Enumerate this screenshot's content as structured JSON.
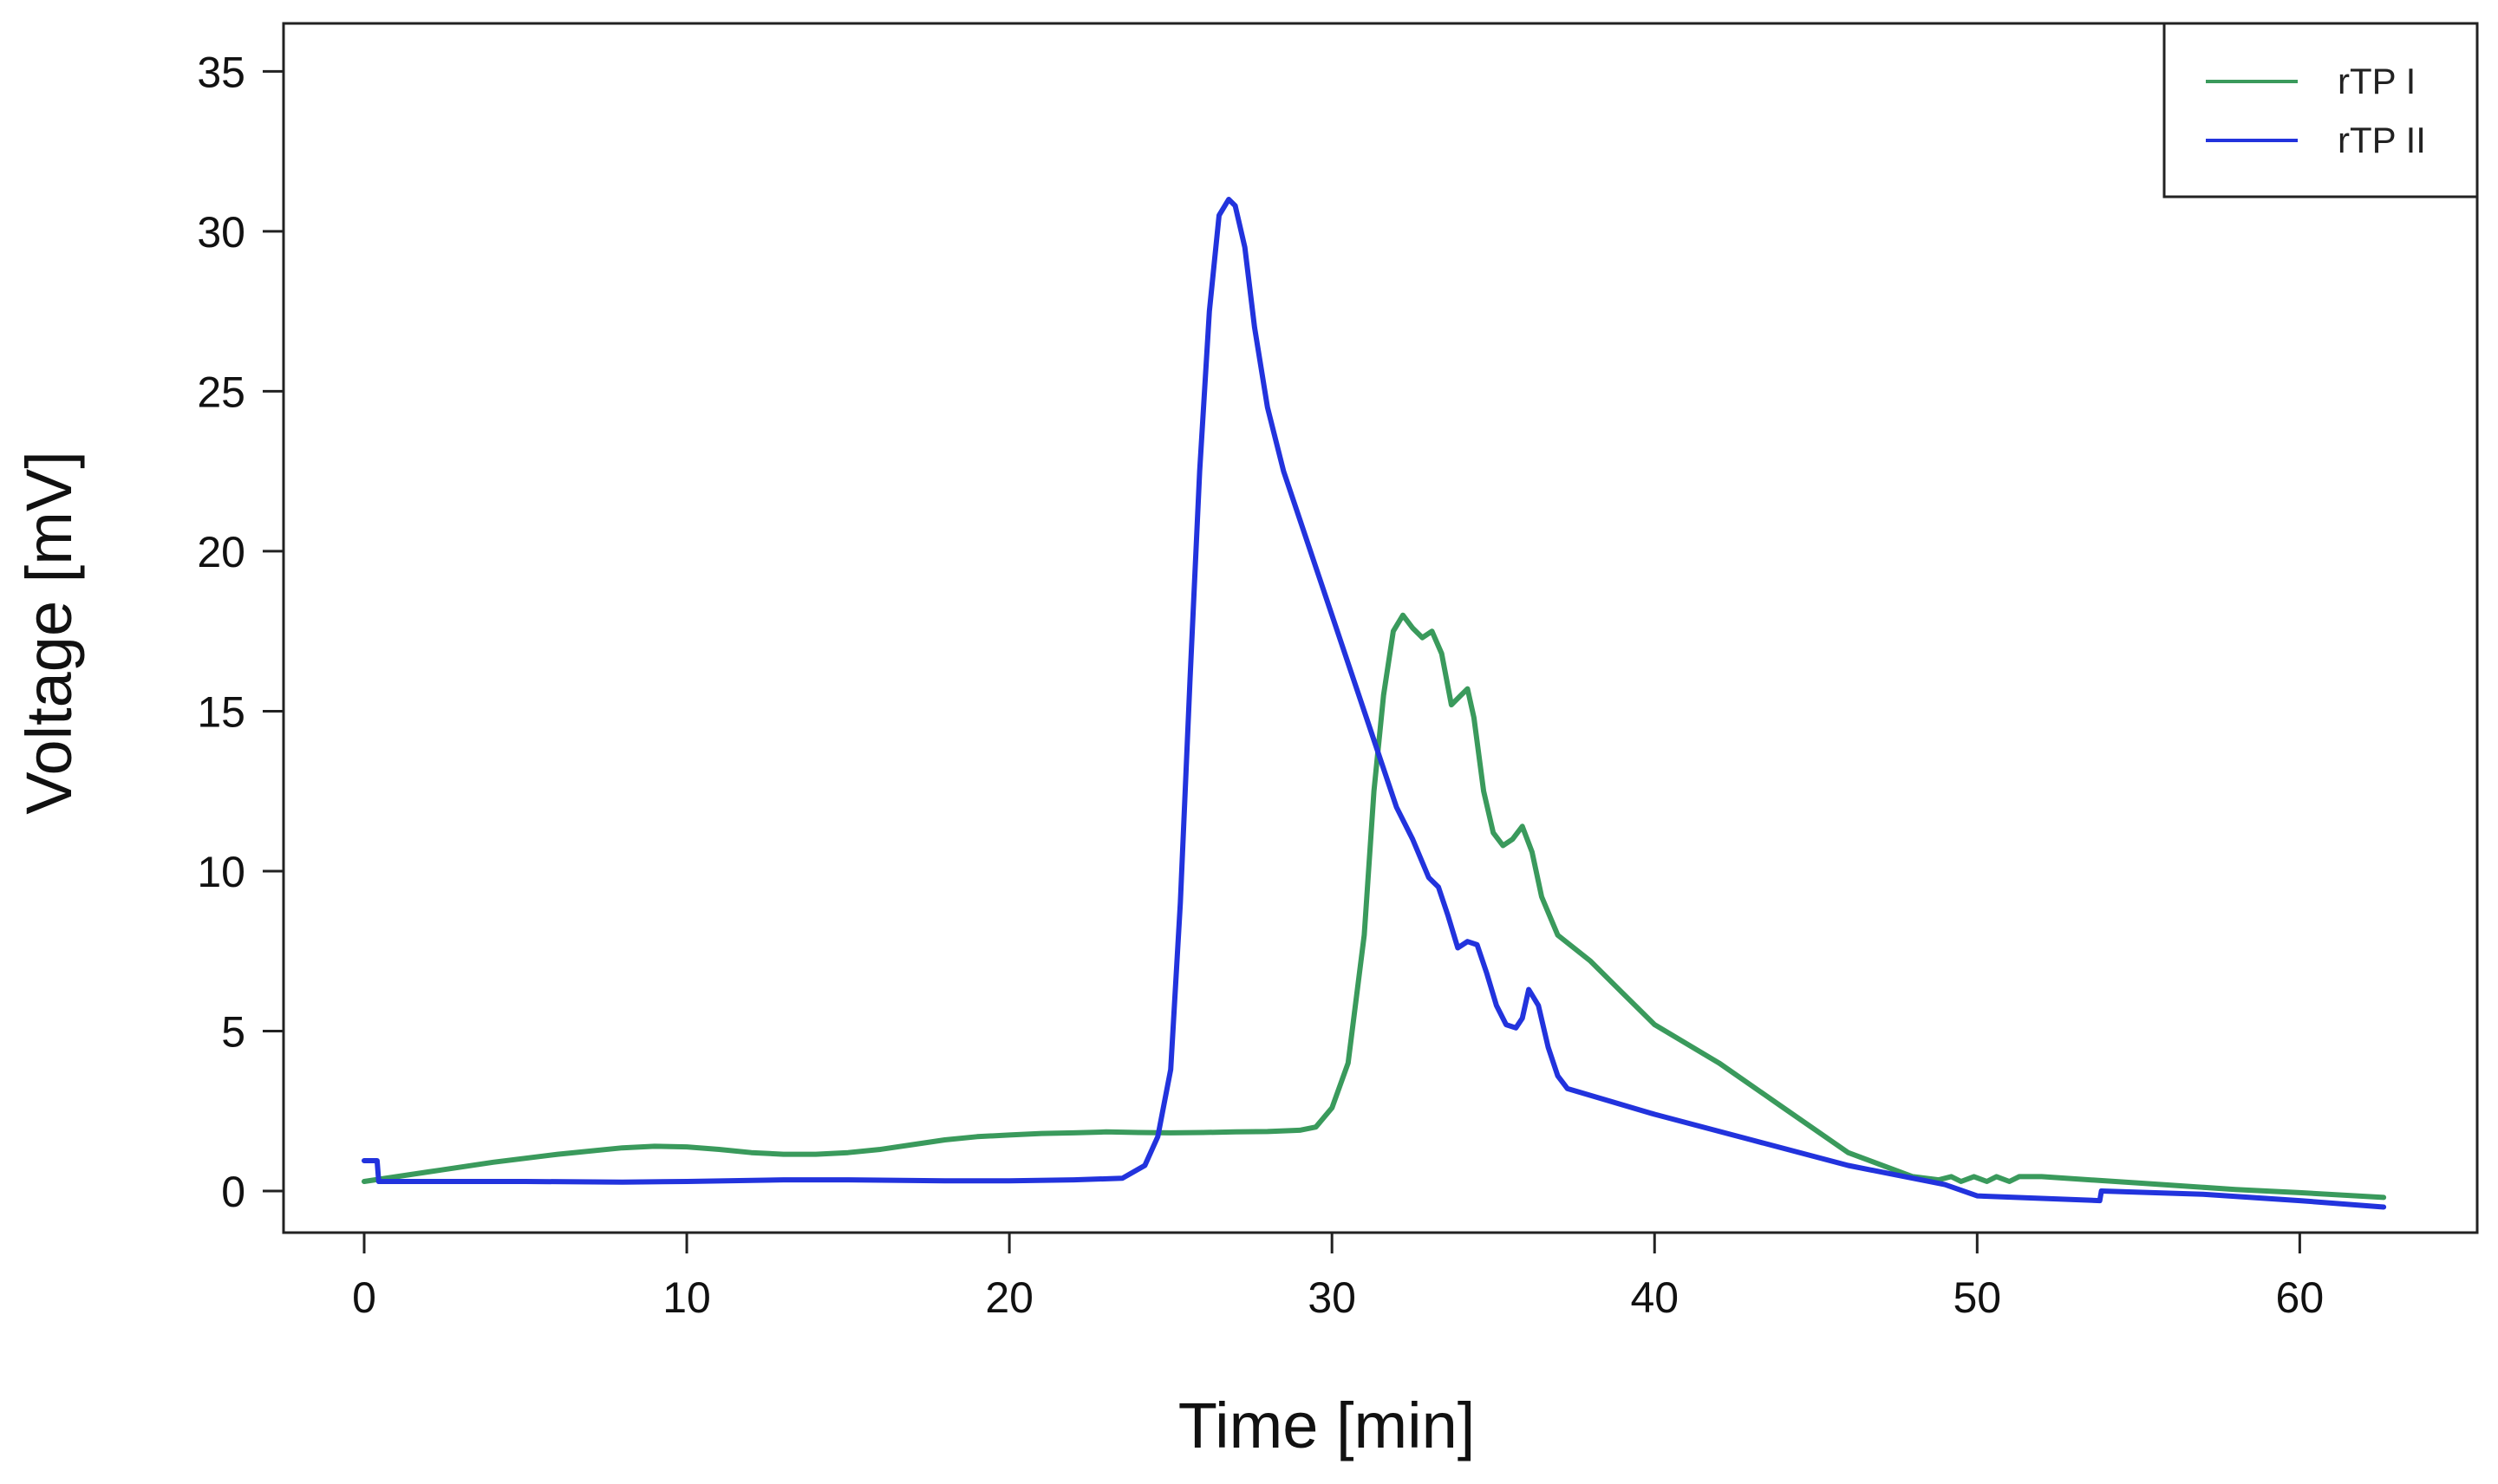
{
  "chart_data": {
    "type": "line",
    "title": "",
    "xlabel": "Time [min]",
    "ylabel": "Voltage [mV]",
    "xlim": [
      -2.5,
      65.5
    ],
    "ylim": [
      -1.3,
      36.5
    ],
    "xticks": [
      "0",
      "10",
      "20",
      "30",
      "40",
      "50",
      "60"
    ],
    "yticks": [
      "0",
      "5",
      "10",
      "15",
      "20",
      "25",
      "30",
      "35"
    ],
    "grid": false,
    "legend_position": "top-right",
    "series": [
      {
        "name": "rTP I",
        "color": "#3a9a5c",
        "x": [
          0,
          2,
          4,
          6,
          8,
          9,
          10,
          11,
          12,
          13,
          14,
          15,
          16,
          17,
          18,
          19,
          20,
          21,
          22,
          23,
          24,
          25,
          26,
          27,
          28,
          29,
          29.5,
          30,
          30.5,
          31,
          31.3,
          31.6,
          31.9,
          32.2,
          32.5,
          32.8,
          33.1,
          33.4,
          33.7,
          34.0,
          34.2,
          34.4,
          34.7,
          35.0,
          35.3,
          35.6,
          35.9,
          36.2,
          36.5,
          37.0,
          38,
          39,
          40,
          42,
          44,
          46,
          48,
          48.8,
          49.2,
          49.5,
          49.9,
          50.3,
          50.6,
          51.0,
          51.3,
          52,
          55,
          58,
          60,
          62.6
        ],
        "y": [
          0.3,
          0.6,
          0.9,
          1.15,
          1.35,
          1.4,
          1.38,
          1.3,
          1.2,
          1.15,
          1.15,
          1.2,
          1.3,
          1.45,
          1.6,
          1.7,
          1.75,
          1.8,
          1.82,
          1.85,
          1.83,
          1.82,
          1.83,
          1.85,
          1.86,
          1.9,
          2.0,
          2.6,
          4.0,
          8.0,
          12.5,
          15.5,
          17.5,
          18.0,
          17.6,
          17.3,
          17.5,
          16.8,
          15.2,
          15.5,
          15.7,
          14.8,
          12.5,
          11.2,
          10.8,
          11.0,
          11.4,
          10.6,
          9.2,
          8.0,
          7.2,
          6.2,
          5.2,
          4.0,
          2.6,
          1.2,
          0.45,
          0.35,
          0.45,
          0.3,
          0.45,
          0.3,
          0.45,
          0.3,
          0.45,
          0.45,
          0.25,
          0.05,
          -0.05,
          -0.2
        ]
      },
      {
        "name": "rTP II",
        "color": "#2233dd",
        "x": [
          0,
          0.4,
          0.45,
          2,
          5,
          8,
          10,
          13,
          15,
          18,
          20,
          22,
          23.5,
          24.2,
          24.6,
          25.0,
          25.3,
          25.6,
          25.9,
          26.2,
          26.5,
          26.8,
          27.0,
          27.3,
          27.6,
          28.0,
          28.5,
          29,
          29.5,
          30,
          31,
          32,
          32.5,
          33.0,
          33.3,
          33.6,
          33.9,
          34.2,
          34.5,
          34.8,
          35.1,
          35.4,
          35.7,
          35.9,
          36.1,
          36.4,
          36.7,
          37.0,
          37.3,
          40,
          43,
          46,
          49,
          50,
          53.8,
          53.85,
          57,
          60,
          62.6
        ],
        "y": [
          0.95,
          0.95,
          0.3,
          0.3,
          0.3,
          0.28,
          0.3,
          0.35,
          0.35,
          0.32,
          0.32,
          0.35,
          0.4,
          0.8,
          1.7,
          3.8,
          9.0,
          16.0,
          22.5,
          27.5,
          30.5,
          31.0,
          30.8,
          29.5,
          27.0,
          24.5,
          22.5,
          21.0,
          19.5,
          18.0,
          15.0,
          12.0,
          11.0,
          9.8,
          9.5,
          8.6,
          7.6,
          7.8,
          7.7,
          6.8,
          5.8,
          5.2,
          5.1,
          5.4,
          6.3,
          5.8,
          4.5,
          3.6,
          3.2,
          2.4,
          1.6,
          0.8,
          0.2,
          -0.15,
          -0.3,
          0.0,
          -0.1,
          -0.3,
          -0.5
        ]
      }
    ]
  }
}
